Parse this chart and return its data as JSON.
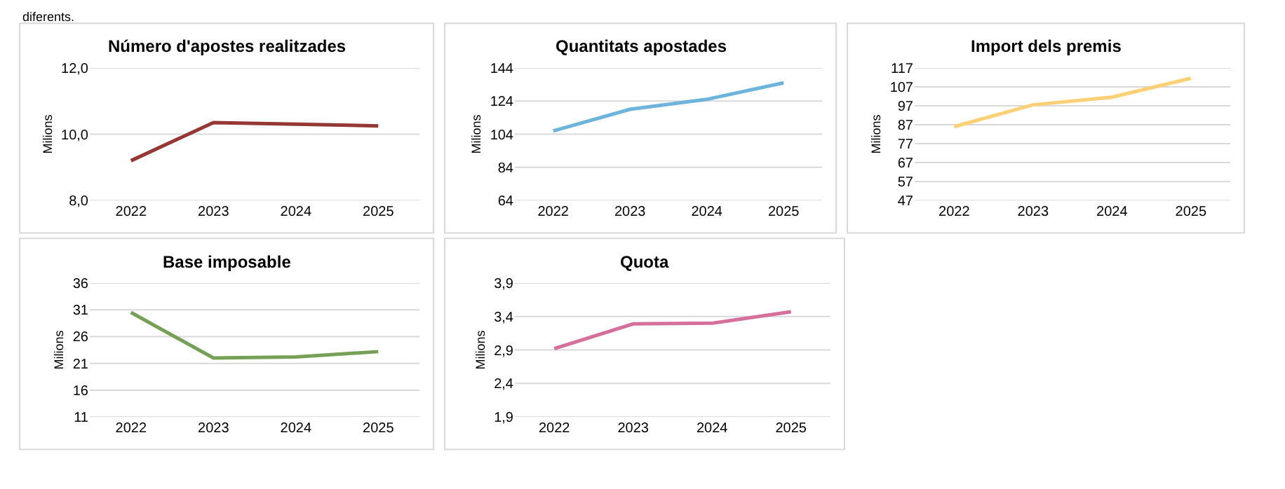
{
  "chart_data": [
    {
      "type": "line",
      "title": "Número d'apostes realitzades",
      "ylabel": "Milions",
      "categories": [
        "2022",
        "2023",
        "2024",
        "2025"
      ],
      "series": [
        {
          "color": "#953735",
          "values": [
            9.2,
            10.35,
            10.3,
            10.25
          ]
        }
      ],
      "ylim": [
        8,
        12
      ],
      "yticks": [
        {
          "value": 8,
          "label": "8,0"
        },
        {
          "value": 10,
          "label": "10,0"
        },
        {
          "value": 12,
          "label": "12,0"
        }
      ],
      "grid": "y",
      "marker": "none",
      "line_style": "solid",
      "annotations": [
        "diferents."
      ]
    },
    {
      "type": "line",
      "title": "Quantitats apostades",
      "ylabel": "Milions",
      "categories": [
        "2022",
        "2023",
        "2024",
        "2025"
      ],
      "series": [
        {
          "color": "#6cb4dc",
          "values": [
            106,
            119,
            125,
            135
          ]
        }
      ],
      "ylim": [
        64,
        144
      ],
      "yticks": [
        64,
        84,
        104,
        124,
        144
      ],
      "grid": "y",
      "marker": "none",
      "line_style": "solid"
    },
    {
      "type": "line",
      "title": "Import dels premis",
      "ylabel": "Milions",
      "categories": [
        "2022",
        "2023",
        "2024",
        "2025"
      ],
      "series": [
        {
          "color": "#fdd076",
          "values": [
            86,
            97.5,
            101.5,
            111.5
          ]
        }
      ],
      "ylim": [
        47,
        117
      ],
      "yticks": [
        47,
        57,
        67,
        77,
        87,
        97,
        107,
        117
      ],
      "grid": "y",
      "marker": "none",
      "line_style": "solid"
    },
    {
      "type": "line",
      "title": "Base imposable",
      "ylabel": "Milions",
      "categories": [
        "2022",
        "2023",
        "2024",
        "2025"
      ],
      "series": [
        {
          "color": "#76a055",
          "values": [
            30.5,
            22,
            22.2,
            23.2
          ]
        }
      ],
      "ylim": [
        11,
        36
      ],
      "yticks": [
        11,
        16,
        21,
        26,
        31,
        36
      ],
      "grid": "y",
      "marker": "none",
      "line_style": "solid"
    },
    {
      "type": "line",
      "title": "Quota",
      "ylabel": "Milions",
      "categories": [
        "2022",
        "2023",
        "2024",
        "2025"
      ],
      "series": [
        {
          "color": "#d66f9c",
          "values": [
            2.92,
            3.29,
            3.3,
            3.47
          ]
        }
      ],
      "ylim": [
        1.9,
        3.9
      ],
      "yticks": [
        {
          "value": 1.9,
          "label": "1,9"
        },
        {
          "value": 2.4,
          "label": "2,4"
        },
        {
          "value": 2.9,
          "label": "2,9"
        },
        {
          "value": 3.4,
          "label": "3,4"
        },
        {
          "value": 3.9,
          "label": "3,9"
        }
      ],
      "grid": "y",
      "marker": "none",
      "line_style": "solid"
    }
  ]
}
